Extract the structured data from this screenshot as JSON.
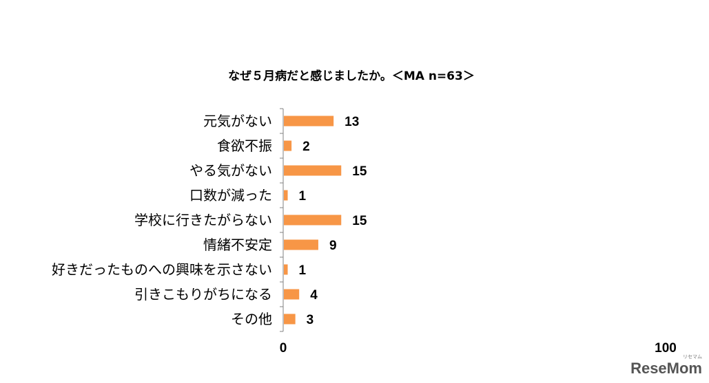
{
  "chart_data": {
    "type": "bar",
    "orientation": "horizontal",
    "title": "なぜ５月病だと感じましたか。＜MA n=63＞",
    "categories": [
      "元気がない",
      "食欲不振",
      "やる気がない",
      "口数が減った",
      "学校に行きたがらない",
      "情緒不安定",
      "好きだったものへの興味を示さない",
      "引きこもりがちになる",
      "その他"
    ],
    "values": [
      13,
      2,
      15,
      1,
      15,
      9,
      1,
      4,
      3
    ],
    "xlim": [
      0,
      100
    ],
    "x_ticks": [
      "0",
      "100"
    ],
    "grid": false,
    "legend": "none",
    "bar_color": "#F79646"
  },
  "watermark": {
    "brand": "ReseMom",
    "small": "リセマム"
  }
}
